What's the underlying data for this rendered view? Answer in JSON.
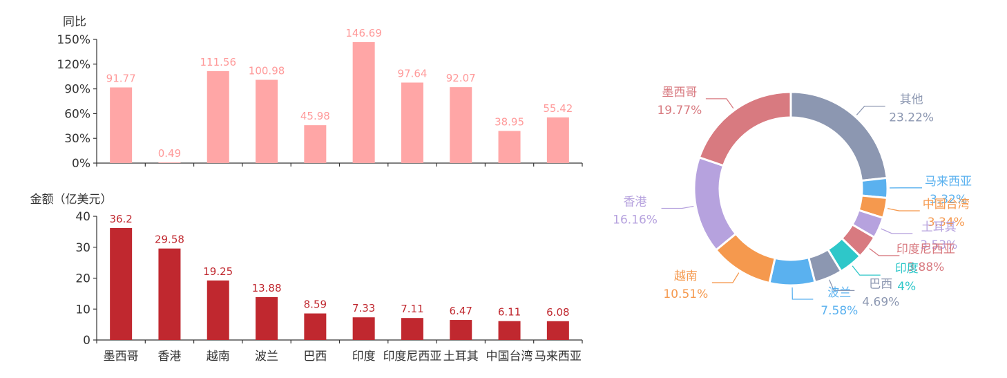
{
  "colors": {
    "yoy_bar": "#FFA6A6",
    "yoy_label": "#FF9A9A",
    "amount_bar": "#C0282F",
    "amount_label": "#C0282F",
    "axis": "#333333",
    "axis_text": "#333333"
  },
  "chart_data": [
    {
      "type": "bar",
      "ylabel": "同比",
      "categories": [
        "墨西哥",
        "香港",
        "越南",
        "波兰",
        "巴西",
        "印度",
        "印度尼西亚",
        "土耳其",
        "中国台湾",
        "马来西亚"
      ],
      "values": [
        91.77,
        0.49,
        111.56,
        100.98,
        45.98,
        146.69,
        97.64,
        92.07,
        38.95,
        55.42
      ],
      "value_labels": [
        "91.77",
        "0.49",
        "111.56",
        "100.98",
        "45.98",
        "146.69",
        "97.64",
        "92.07",
        "38.95",
        "55.42"
      ],
      "ylim": [
        0,
        150
      ],
      "yticks": [
        0,
        30,
        60,
        90,
        120,
        150
      ],
      "ytick_labels": [
        "0%",
        "30%",
        "60%",
        "90%",
        "120%",
        "150%"
      ],
      "grid": false
    },
    {
      "type": "bar",
      "ylabel": "金额（亿美元）",
      "categories": [
        "墨西哥",
        "香港",
        "越南",
        "波兰",
        "巴西",
        "印度",
        "印度尼西亚",
        "土耳其",
        "中国台湾",
        "马来西亚"
      ],
      "values": [
        36.2,
        29.58,
        19.25,
        13.88,
        8.59,
        7.33,
        7.11,
        6.47,
        6.11,
        6.08
      ],
      "value_labels": [
        "36.2",
        "29.58",
        "19.25",
        "13.88",
        "8.59",
        "7.33",
        "7.11",
        "6.47",
        "6.11",
        "6.08"
      ],
      "ylim": [
        0,
        40
      ],
      "yticks": [
        0,
        10,
        20,
        30,
        40
      ],
      "ytick_labels": [
        "0",
        "10",
        "20",
        "30",
        "40"
      ],
      "grid": false
    },
    {
      "type": "pie",
      "donut": true,
      "slices": [
        {
          "name": "其他",
          "value": 23.22,
          "label": "23.22%",
          "color": "#8C97B1"
        },
        {
          "name": "马来西亚",
          "value": 3.32,
          "label": "3.32%",
          "color": "#5AB1EF"
        },
        {
          "name": "中国台湾",
          "value": 3.34,
          "label": "3.34%",
          "color": "#F5994E"
        },
        {
          "name": "土耳其",
          "value": 3.53,
          "label": "3.53%",
          "color": "#B6A2DE"
        },
        {
          "name": "印度尼西亚",
          "value": 3.88,
          "label": "3.88%",
          "color": "#D87A80"
        },
        {
          "name": "印度",
          "value": 4,
          "label": "4%",
          "color": "#2EC7C9"
        },
        {
          "name": "巴西",
          "value": 4.69,
          "label": "4.69%",
          "color": "#8C97B1"
        },
        {
          "name": "波兰",
          "value": 7.58,
          "label": "7.58%",
          "color": "#5AB1EF"
        },
        {
          "name": "越南",
          "value": 10.51,
          "label": "10.51%",
          "color": "#F5994E"
        },
        {
          "name": "香港",
          "value": 16.16,
          "label": "16.16%",
          "color": "#B6A2DE"
        },
        {
          "name": "墨西哥",
          "value": 19.77,
          "label": "19.77%",
          "color": "#D87A80"
        }
      ]
    }
  ]
}
